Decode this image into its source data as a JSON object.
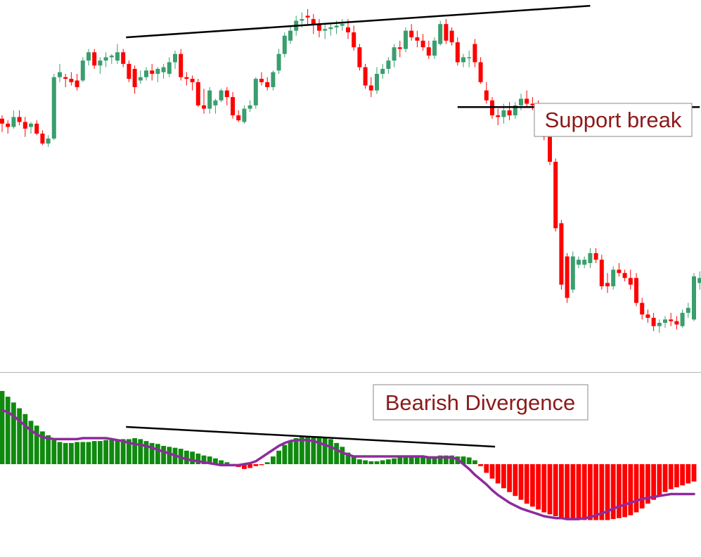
{
  "colors": {
    "bull": "#3a9e6e",
    "bear": "#ff0000",
    "hist_pos": "#0f8a0f",
    "hist_neg": "#ff0000",
    "signal": "#8e2a9e",
    "trendline": "#000000",
    "separator": "#b4b4b4",
    "annotation_text": "#8b1a1a",
    "annotation_border": "#8a8a8a"
  },
  "annotations": {
    "support_break": "Support break",
    "bearish_divergence": "Bearish Divergence"
  },
  "chart_data": [
    {
      "type": "candlestick",
      "panel": "price",
      "candles": [
        {
          "o": 123,
          "h": 125,
          "l": 115,
          "c": 120
        },
        {
          "o": 120,
          "h": 122,
          "l": 114,
          "c": 118
        },
        {
          "o": 118,
          "h": 128,
          "l": 117,
          "c": 124
        },
        {
          "o": 124,
          "h": 128,
          "l": 119,
          "c": 121
        },
        {
          "o": 121,
          "h": 124,
          "l": 112,
          "c": 117
        },
        {
          "o": 118,
          "h": 121,
          "l": 114,
          "c": 120
        },
        {
          "o": 120,
          "h": 122,
          "l": 113,
          "c": 114
        },
        {
          "o": 114,
          "h": 116,
          "l": 107,
          "c": 108
        },
        {
          "o": 108,
          "h": 113,
          "l": 106,
          "c": 111
        },
        {
          "o": 111,
          "h": 150,
          "l": 110,
          "c": 148
        },
        {
          "o": 148,
          "h": 156,
          "l": 145,
          "c": 151
        },
        {
          "o": 148,
          "h": 150,
          "l": 142,
          "c": 147
        },
        {
          "o": 147,
          "h": 151,
          "l": 143,
          "c": 145
        },
        {
          "o": 146,
          "h": 150,
          "l": 140,
          "c": 142
        },
        {
          "o": 146,
          "h": 160,
          "l": 145,
          "c": 158
        },
        {
          "o": 158,
          "h": 165,
          "l": 155,
          "c": 163
        },
        {
          "o": 163,
          "h": 165,
          "l": 153,
          "c": 155
        },
        {
          "o": 155,
          "h": 160,
          "l": 150,
          "c": 158
        },
        {
          "o": 158,
          "h": 163,
          "l": 154,
          "c": 160
        },
        {
          "o": 160,
          "h": 162,
          "l": 156,
          "c": 161
        },
        {
          "o": 158,
          "h": 168,
          "l": 156,
          "c": 163
        },
        {
          "o": 163,
          "h": 165,
          "l": 154,
          "c": 156
        },
        {
          "o": 156,
          "h": 158,
          "l": 145,
          "c": 147
        },
        {
          "o": 153,
          "h": 155,
          "l": 138,
          "c": 142
        },
        {
          "o": 146,
          "h": 152,
          "l": 144,
          "c": 148
        },
        {
          "o": 148,
          "h": 154,
          "l": 146,
          "c": 152
        },
        {
          "o": 152,
          "h": 156,
          "l": 146,
          "c": 150
        },
        {
          "o": 150,
          "h": 154,
          "l": 145,
          "c": 153
        },
        {
          "o": 151,
          "h": 156,
          "l": 147,
          "c": 154
        },
        {
          "o": 150,
          "h": 160,
          "l": 148,
          "c": 157
        },
        {
          "o": 157,
          "h": 164,
          "l": 153,
          "c": 162
        },
        {
          "o": 162,
          "h": 165,
          "l": 146,
          "c": 148
        },
        {
          "o": 148,
          "h": 151,
          "l": 143,
          "c": 147
        },
        {
          "o": 147,
          "h": 149,
          "l": 140,
          "c": 145
        },
        {
          "o": 145,
          "h": 147,
          "l": 130,
          "c": 131
        },
        {
          "o": 131,
          "h": 141,
          "l": 126,
          "c": 129
        },
        {
          "o": 129,
          "h": 142,
          "l": 126,
          "c": 140
        },
        {
          "o": 131,
          "h": 135,
          "l": 126,
          "c": 134
        },
        {
          "o": 134,
          "h": 141,
          "l": 133,
          "c": 140
        },
        {
          "o": 140,
          "h": 142,
          "l": 131,
          "c": 136
        },
        {
          "o": 136,
          "h": 139,
          "l": 123,
          "c": 125
        },
        {
          "o": 125,
          "h": 128,
          "l": 121,
          "c": 122
        },
        {
          "o": 121,
          "h": 131,
          "l": 120,
          "c": 129
        },
        {
          "o": 129,
          "h": 134,
          "l": 127,
          "c": 131
        },
        {
          "o": 131,
          "h": 148,
          "l": 129,
          "c": 147
        },
        {
          "o": 147,
          "h": 151,
          "l": 143,
          "c": 145
        },
        {
          "o": 145,
          "h": 148,
          "l": 140,
          "c": 142
        },
        {
          "o": 142,
          "h": 152,
          "l": 140,
          "c": 151
        },
        {
          "o": 152,
          "h": 165,
          "l": 150,
          "c": 162
        },
        {
          "o": 162,
          "h": 175,
          "l": 160,
          "c": 173
        },
        {
          "o": 170,
          "h": 179,
          "l": 168,
          "c": 176
        },
        {
          "o": 176,
          "h": 185,
          "l": 173,
          "c": 182
        },
        {
          "o": 182,
          "h": 187,
          "l": 178,
          "c": 183
        },
        {
          "o": 185,
          "h": 189,
          "l": 180,
          "c": 184
        },
        {
          "o": 183,
          "h": 186,
          "l": 174,
          "c": 180
        },
        {
          "o": 180,
          "h": 183,
          "l": 172,
          "c": 176
        },
        {
          "o": 176,
          "h": 180,
          "l": 171,
          "c": 177
        },
        {
          "o": 177,
          "h": 181,
          "l": 173,
          "c": 178
        },
        {
          "o": 178,
          "h": 182,
          "l": 174,
          "c": 179
        },
        {
          "o": 179,
          "h": 183,
          "l": 176,
          "c": 180
        },
        {
          "o": 178,
          "h": 183,
          "l": 171,
          "c": 175
        },
        {
          "o": 175,
          "h": 179,
          "l": 164,
          "c": 166
        },
        {
          "o": 166,
          "h": 168,
          "l": 152,
          "c": 154
        },
        {
          "o": 154,
          "h": 156,
          "l": 141,
          "c": 143
        },
        {
          "o": 143,
          "h": 148,
          "l": 136,
          "c": 140
        },
        {
          "o": 140,
          "h": 154,
          "l": 138,
          "c": 150
        },
        {
          "o": 150,
          "h": 156,
          "l": 147,
          "c": 153
        },
        {
          "o": 153,
          "h": 160,
          "l": 150,
          "c": 158
        },
        {
          "o": 158,
          "h": 168,
          "l": 154,
          "c": 166
        },
        {
          "o": 166,
          "h": 170,
          "l": 160,
          "c": 165
        },
        {
          "o": 165,
          "h": 178,
          "l": 163,
          "c": 176
        },
        {
          "o": 176,
          "h": 180,
          "l": 170,
          "c": 172
        },
        {
          "o": 172,
          "h": 176,
          "l": 166,
          "c": 170
        },
        {
          "o": 170,
          "h": 174,
          "l": 164,
          "c": 166
        },
        {
          "o": 166,
          "h": 170,
          "l": 159,
          "c": 161
        },
        {
          "o": 161,
          "h": 172,
          "l": 159,
          "c": 170
        },
        {
          "o": 168,
          "h": 182,
          "l": 167,
          "c": 180
        },
        {
          "o": 180,
          "h": 183,
          "l": 168,
          "c": 170
        },
        {
          "o": 176,
          "h": 178,
          "l": 167,
          "c": 169
        },
        {
          "o": 169,
          "h": 172,
          "l": 155,
          "c": 157
        },
        {
          "o": 157,
          "h": 162,
          "l": 154,
          "c": 160
        },
        {
          "o": 160,
          "h": 164,
          "l": 154,
          "c": 160
        },
        {
          "o": 168,
          "h": 171,
          "l": 154,
          "c": 157
        },
        {
          "o": 157,
          "h": 160,
          "l": 144,
          "c": 145
        },
        {
          "o": 140,
          "h": 145,
          "l": 132,
          "c": 134
        },
        {
          "o": 134,
          "h": 136,
          "l": 123,
          "c": 125
        },
        {
          "o": 125,
          "h": 129,
          "l": 119,
          "c": 124
        },
        {
          "o": 124,
          "h": 132,
          "l": 120,
          "c": 128
        },
        {
          "o": 128,
          "h": 133,
          "l": 122,
          "c": 125
        },
        {
          "o": 125,
          "h": 133,
          "l": 123,
          "c": 131
        },
        {
          "o": 131,
          "h": 138,
          "l": 128,
          "c": 135
        },
        {
          "o": 135,
          "h": 140,
          "l": 130,
          "c": 132
        },
        {
          "o": 132,
          "h": 136,
          "l": 128,
          "c": 131
        },
        {
          "o": 131,
          "h": 134,
          "l": 120,
          "c": 122
        },
        {
          "o": 122,
          "h": 125,
          "l": 110,
          "c": 112
        },
        {
          "o": 112,
          "h": 116,
          "l": 95,
          "c": 97
        },
        {
          "o": 97,
          "h": 99,
          "l": 55,
          "c": 57
        },
        {
          "o": 60,
          "h": 62,
          "l": 20,
          "c": 23
        },
        {
          "o": 40,
          "h": 42,
          "l": 12,
          "c": 15
        },
        {
          "o": 20,
          "h": 43,
          "l": 18,
          "c": 40
        },
        {
          "o": 35,
          "h": 40,
          "l": 33,
          "c": 38
        },
        {
          "o": 35,
          "h": 40,
          "l": 33,
          "c": 38
        },
        {
          "o": 36,
          "h": 45,
          "l": 33,
          "c": 42
        },
        {
          "o": 42,
          "h": 45,
          "l": 36,
          "c": 38
        },
        {
          "o": 38,
          "h": 41,
          "l": 20,
          "c": 22
        },
        {
          "o": 24,
          "h": 30,
          "l": 18,
          "c": 22
        },
        {
          "o": 22,
          "h": 34,
          "l": 20,
          "c": 32
        },
        {
          "o": 32,
          "h": 36,
          "l": 28,
          "c": 30
        },
        {
          "o": 30,
          "h": 32,
          "l": 25,
          "c": 27
        },
        {
          "o": 27,
          "h": 32,
          "l": 20,
          "c": 23
        },
        {
          "o": 27,
          "h": 30,
          "l": 10,
          "c": 12
        },
        {
          "o": 12,
          "h": 15,
          "l": 2,
          "c": 5
        },
        {
          "o": 5,
          "h": 8,
          "l": 0,
          "c": 3
        },
        {
          "o": 3,
          "h": 6,
          "l": -5,
          "c": -2
        },
        {
          "o": -2,
          "h": 2,
          "l": -6,
          "c": 0
        },
        {
          "o": 0,
          "h": 4,
          "l": -3,
          "c": 2
        },
        {
          "o": 2,
          "h": 6,
          "l": -2,
          "c": 1
        },
        {
          "o": 1,
          "h": 4,
          "l": -4,
          "c": -1
        },
        {
          "o": -2,
          "h": 8,
          "l": -3,
          "c": 6
        },
        {
          "o": 6,
          "h": 12,
          "l": 3,
          "c": 9
        },
        {
          "o": 2,
          "h": 30,
          "l": 1,
          "c": 28
        },
        {
          "o": 24,
          "h": 31,
          "l": 20,
          "c": 27
        },
        {
          "o": 25,
          "h": 30,
          "l": 22,
          "c": 28
        },
        {
          "o": 29,
          "h": 37,
          "l": 27,
          "c": 31
        },
        {
          "o": 31,
          "h": 36,
          "l": 23,
          "c": 25
        },
        {
          "o": 30,
          "h": 33,
          "l": 20,
          "c": 22
        },
        {
          "o": 22,
          "h": 24,
          "l": 13,
          "c": 15
        },
        {
          "o": 15,
          "h": 18,
          "l": 5,
          "c": 8
        },
        {
          "o": 13,
          "h": 16,
          "l": 6,
          "c": 9
        },
        {
          "o": 9,
          "h": 12,
          "l": 2,
          "c": 4
        },
        {
          "o": 4,
          "h": 15,
          "l": 2,
          "c": 13
        },
        {
          "o": 13,
          "h": 20,
          "l": 10,
          "c": 17
        },
        {
          "o": 17,
          "h": 20,
          "l": 10,
          "c": 12
        },
        {
          "o": 12,
          "h": 15,
          "l": 5,
          "c": 7
        },
        {
          "o": 6,
          "h": 18,
          "l": 4,
          "c": 16
        }
      ],
      "trendlines": [
        {
          "x": [
            21.5,
            102
          ],
          "y": [
            172,
            191
          ]
        },
        {
          "x": [
            79,
            121
          ],
          "y": [
            130,
            130
          ]
        }
      ]
    },
    {
      "type": "histogram",
      "panel": "oscillator",
      "values": [
        76,
        70,
        64,
        58,
        52,
        45,
        40,
        34,
        30,
        27,
        23,
        22,
        22,
        23,
        23,
        23,
        24,
        24,
        25,
        25,
        25,
        26,
        26,
        27,
        26,
        24,
        22,
        21,
        19,
        18,
        17,
        16,
        14,
        13,
        11,
        9,
        8,
        6,
        4,
        2,
        0,
        -3,
        -5,
        -4,
        -2,
        -1,
        2,
        8,
        14,
        20,
        24,
        27,
        28,
        29,
        29,
        29,
        28,
        26,
        22,
        18,
        12,
        8,
        5,
        4,
        3,
        3,
        4,
        5,
        6,
        7,
        7,
        8,
        8,
        8,
        8,
        8,
        9,
        9,
        9,
        8,
        8,
        7,
        4,
        -2,
        -9,
        -15,
        -20,
        -25,
        -29,
        -33,
        -37,
        -41,
        -44,
        -47,
        -50,
        -52,
        -54,
        -56,
        -57,
        -58,
        -58,
        -58,
        -58,
        -58,
        -58,
        -58,
        -57,
        -56,
        -55,
        -53,
        -50,
        -46,
        -41,
        -37,
        -33,
        -29,
        -26,
        -24,
        -22,
        -20,
        -18
      ],
      "signal": [
        56,
        54,
        50,
        45,
        40,
        35,
        31,
        28,
        27,
        26,
        26,
        26,
        26,
        26,
        27,
        27,
        27,
        27,
        27,
        26,
        25,
        24,
        22,
        21,
        20,
        19,
        17,
        15,
        13,
        11,
        9,
        7,
        5,
        4,
        3,
        2,
        1,
        0,
        -1,
        -1,
        -1,
        -1,
        0,
        1,
        3,
        7,
        11,
        15,
        19,
        22,
        24,
        25,
        25,
        25,
        24,
        22,
        20,
        18,
        15,
        12,
        10,
        8,
        8,
        8,
        8,
        8,
        8,
        8,
        8,
        8,
        8,
        8,
        8,
        8,
        7,
        7,
        7,
        7,
        7,
        5,
        0,
        -5,
        -11,
        -16,
        -21,
        -27,
        -32,
        -36,
        -40,
        -43,
        -46,
        -48,
        -50,
        -52,
        -54,
        -55,
        -56,
        -56,
        -57,
        -57,
        -57,
        -56,
        -55,
        -53,
        -51,
        -49,
        -46,
        -44,
        -42,
        -40,
        -38,
        -36,
        -35,
        -34,
        -33,
        -32,
        -31,
        -31,
        -31,
        -31,
        -31
      ],
      "trendline": {
        "x": [
          21.5,
          85.5
        ],
        "y": [
          38.7,
          18.2
        ]
      }
    }
  ]
}
